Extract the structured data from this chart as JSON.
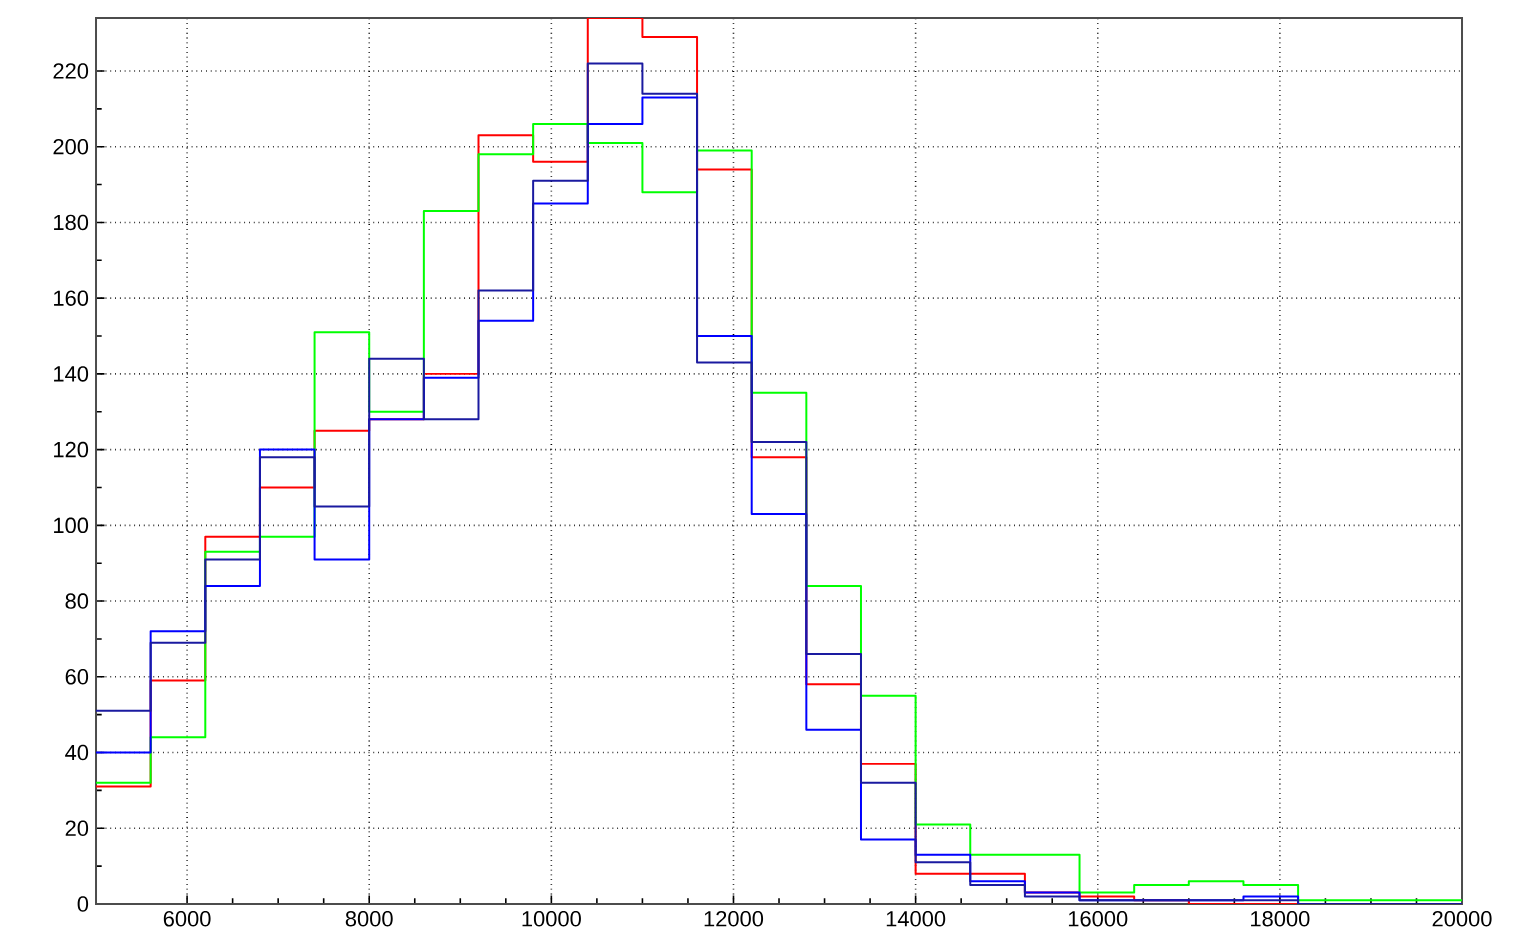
{
  "chart_data": {
    "type": "histogram",
    "bins": [
      5000,
      5600,
      6200,
      6800,
      7400,
      8000,
      8600,
      9200,
      9800,
      10400,
      11000,
      11600,
      12200,
      12800,
      13400,
      14000,
      14600,
      15200,
      15800,
      16400,
      17000,
      17600,
      18200,
      18800,
      19400,
      20000
    ],
    "series": [
      {
        "color": "#ff0000",
        "values": [
          31,
          59,
          97,
          110,
          125,
          128,
          140,
          203,
          196,
          234,
          229,
          194,
          118,
          58,
          37,
          8,
          8,
          3,
          2,
          1,
          0,
          0,
          0,
          0,
          0
        ]
      },
      {
        "color": "#00ff00",
        "values": [
          32,
          44,
          93,
          97,
          151,
          130,
          183,
          198,
          206,
          201,
          188,
          199,
          135,
          84,
          55,
          21,
          13,
          13,
          3,
          5,
          6,
          5,
          1,
          1,
          1
        ]
      },
      {
        "color": "#0000ff",
        "values": [
          40,
          72,
          84,
          120,
          91,
          128,
          139,
          154,
          185,
          206,
          213,
          150,
          103,
          46,
          17,
          13,
          6,
          3,
          1,
          1,
          1,
          2,
          0,
          0,
          0
        ]
      },
      {
        "color": "#1a1aa0",
        "values": [
          51,
          69,
          91,
          118,
          105,
          144,
          128,
          162,
          191,
          222,
          214,
          143,
          122,
          66,
          32,
          11,
          5,
          2,
          1,
          1,
          1,
          1,
          0,
          0,
          0
        ]
      }
    ],
    "xlim": [
      5000,
      20000
    ],
    "ylim": [
      0,
      234
    ],
    "xticks": [
      6000,
      8000,
      10000,
      12000,
      14000,
      16000,
      18000,
      20000
    ],
    "yticks": [
      0,
      20,
      40,
      60,
      80,
      100,
      120,
      140,
      160,
      180,
      200,
      220
    ],
    "grid": true
  }
}
